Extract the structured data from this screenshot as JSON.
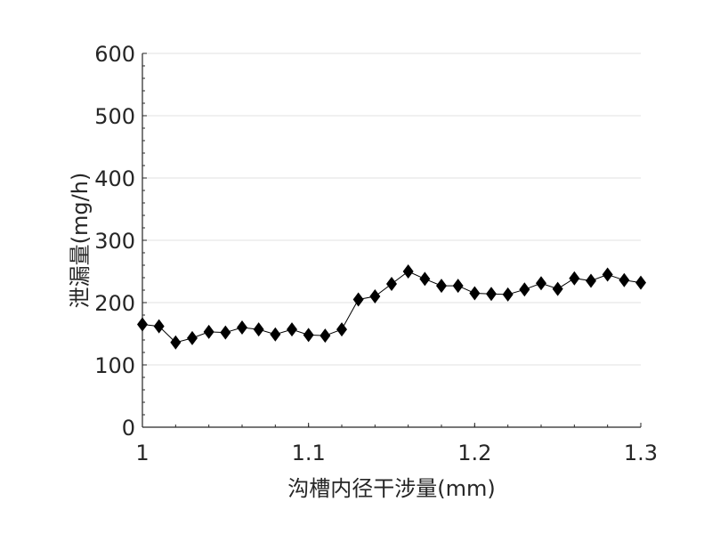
{
  "chart_data": {
    "type": "line",
    "title": "",
    "xlabel": "沟槽内径干涉量(mm)",
    "ylabel": "泄漏量(mg/h)",
    "xlim": [
      1,
      1.3
    ],
    "ylim": [
      0,
      600
    ],
    "x_ticks": [
      "1",
      "1.1",
      "1.2",
      "1.3"
    ],
    "y_ticks": [
      "0",
      "100",
      "200",
      "300",
      "400",
      "500",
      "600"
    ],
    "grid": "horizontal",
    "legend": null,
    "marker": "diamond",
    "color": "#000000",
    "x": [
      1.0,
      1.01,
      1.02,
      1.03,
      1.04,
      1.05,
      1.06,
      1.07,
      1.08,
      1.09,
      1.1,
      1.11,
      1.12,
      1.13,
      1.14,
      1.15,
      1.16,
      1.17,
      1.18,
      1.19,
      1.2,
      1.21,
      1.22,
      1.23,
      1.24,
      1.25,
      1.26,
      1.27,
      1.28,
      1.29,
      1.3
    ],
    "series": [
      {
        "name": "泄漏量",
        "values": [
          165,
          162,
          136,
          143,
          153,
          152,
          160,
          157,
          149,
          157,
          148,
          147,
          157,
          205,
          210,
          230,
          250,
          238,
          227,
          227,
          215,
          214,
          213,
          221,
          231,
          222,
          239,
          235,
          245,
          236,
          232
        ]
      }
    ]
  }
}
